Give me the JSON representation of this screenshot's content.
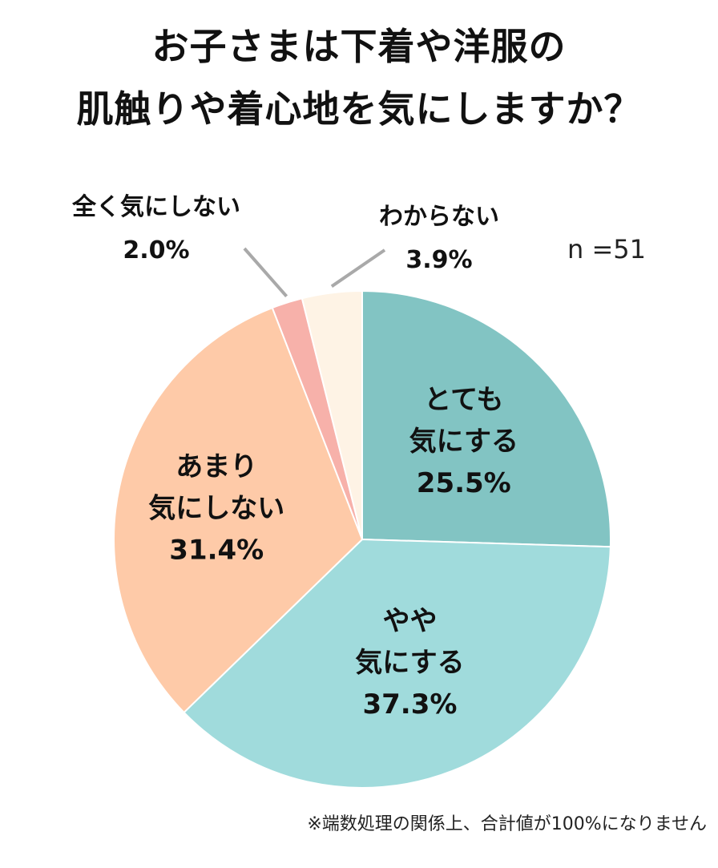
{
  "title_lines": [
    "お子さまは下着や洋服の",
    "肌触りや着心地を気にしますか？"
  ],
  "sample_size": "n =51",
  "footnote": "※端数処理の関係上、合計値が100%になりません",
  "colors": {
    "leader_line": "#a9a9a9",
    "slice_border": "#ffffff"
  },
  "chart_data": {
    "type": "pie",
    "title": "お子さまは下着や洋服の肌触りや着心地を気にしますか？",
    "start": "12 o'clock, clockwise",
    "slices": [
      {
        "label_lines": [
          "とても",
          "気にする"
        ],
        "value": 25.5,
        "value_label": "25.5%",
        "color": "#82c4c3",
        "label_placement": "inside"
      },
      {
        "label_lines": [
          "やや",
          "気にする"
        ],
        "value": 37.3,
        "value_label": "37.3%",
        "color": "#a0dbdc",
        "label_placement": "inside"
      },
      {
        "label_lines": [
          "あまり",
          "気にしない"
        ],
        "value": 31.4,
        "value_label": "31.4%",
        "color": "#fecaa8",
        "label_placement": "inside"
      },
      {
        "label_lines": [
          "全く気にしない"
        ],
        "value": 2.0,
        "value_label": "2.0%",
        "color": "#f7b1aa",
        "label_placement": "outside-left"
      },
      {
        "label_lines": [
          "わからない"
        ],
        "value": 3.9,
        "value_label": "3.9%",
        "color": "#fef3e5",
        "label_placement": "outside-right"
      }
    ]
  }
}
